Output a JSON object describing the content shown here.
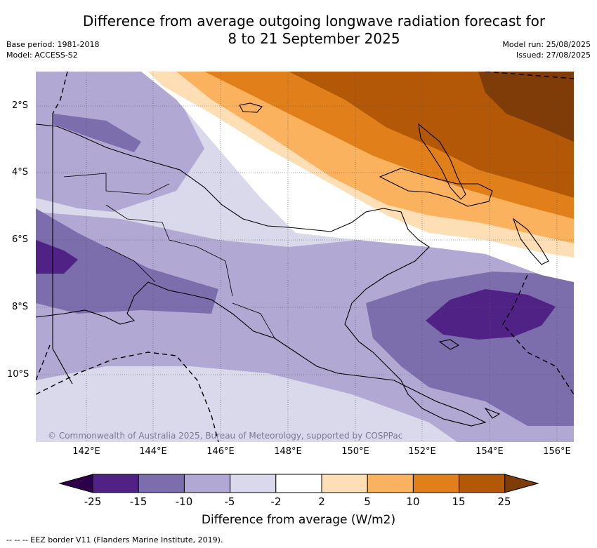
{
  "title": {
    "line1": "Difference from average outgoing longwave radiation forecast for",
    "line2": "8 to 21 September 2025"
  },
  "meta_left": {
    "base_period": "Base period: 1981-2018",
    "model": "Model: ACCESS-S2"
  },
  "meta_right": {
    "model_run": "Model run: 25/08/2025",
    "issued": "Issued: 27/08/2025"
  },
  "map": {
    "lat_labels": [
      "2°S",
      "4°S",
      "6°S",
      "8°S",
      "10°S"
    ],
    "lon_labels": [
      "142°E",
      "144°E",
      "146°E",
      "148°E",
      "150°E",
      "152°E",
      "154°E",
      "156°E"
    ],
    "copyright": "© Commonwealth of Australia 2025, Bureau of Meteorology, supported by COSPPac"
  },
  "colorbar": {
    "ticks": [
      "-25",
      "-15",
      "-10",
      "-5",
      "-2",
      "2",
      "5",
      "10",
      "15",
      "25"
    ],
    "colors": [
      "#512286",
      "#7c6dac",
      "#b1a8d3",
      "#d9d9eb",
      "#ffffff",
      "#fedeb4",
      "#fbb25e",
      "#e1801a",
      "#b35806",
      "#7f3b08"
    ],
    "under_color": "#2d004b",
    "title": "Difference from average (W/m2)"
  },
  "legend": {
    "eez": "--  --  -- EEZ border V11 (Flanders Marine Institute, 2019)."
  }
}
